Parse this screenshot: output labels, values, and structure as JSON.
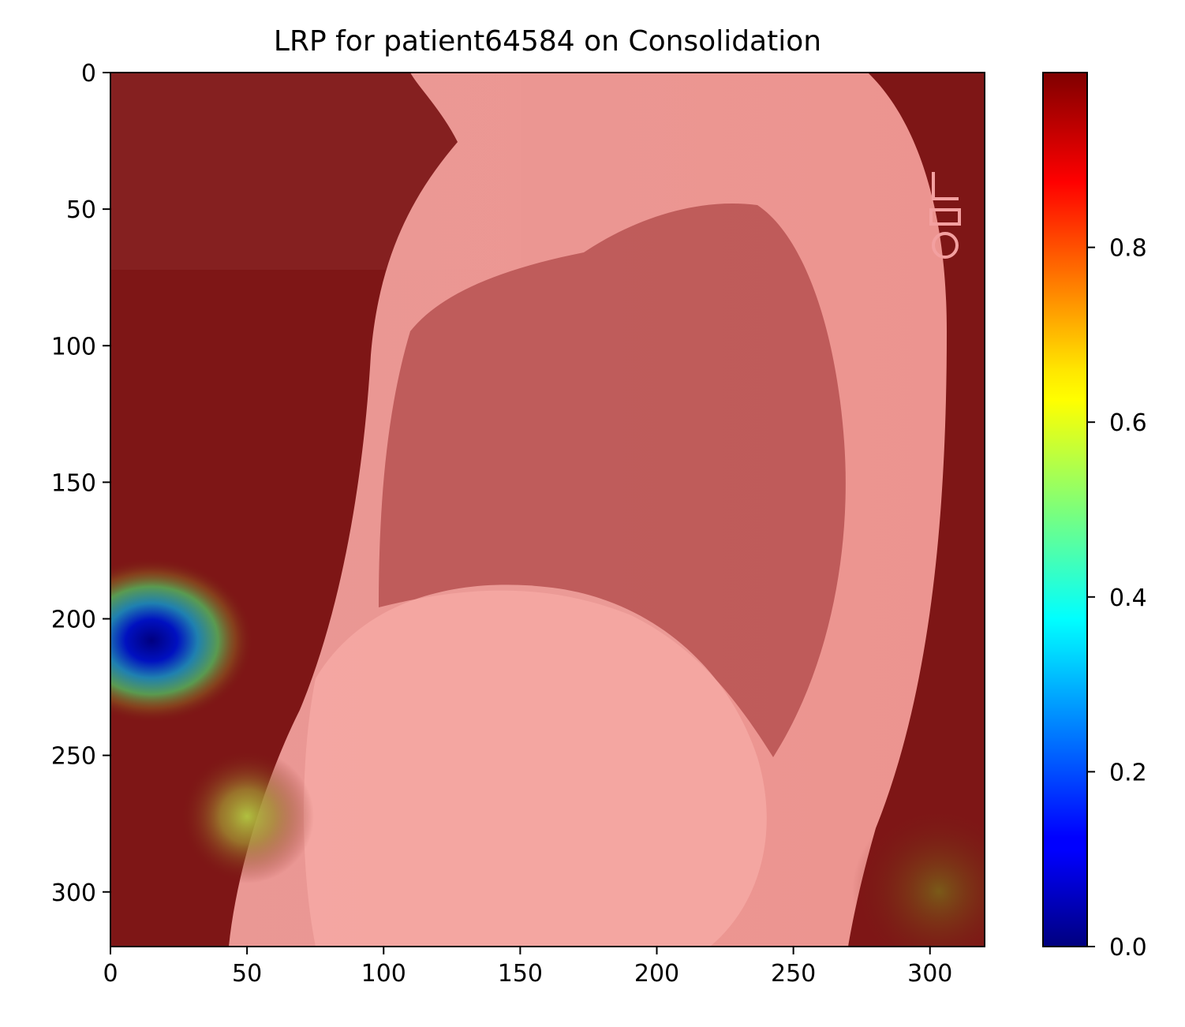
{
  "chart_data": {
    "type": "heatmap",
    "title": "LRP for patient64584 on Consolidation",
    "xlabel": "",
    "ylabel": "",
    "image_size": [
      320,
      320
    ],
    "xlim": [
      0,
      320
    ],
    "ylim": [
      320,
      0
    ],
    "x_ticks": [
      0,
      50,
      100,
      150,
      200,
      250,
      300
    ],
    "y_ticks": [
      0,
      50,
      100,
      150,
      200,
      250,
      300
    ],
    "colormap": "jet",
    "colorbar": {
      "range": [
        0.0,
        1.0
      ],
      "ticks": [
        0.0,
        0.2,
        0.4,
        0.6,
        0.8
      ],
      "tick_labels": [
        "0.0",
        "0.2",
        "0.4",
        "0.6",
        "0.8"
      ]
    },
    "background_color": "#7a1414",
    "overlay_color": "#f4a3a0",
    "hotspots": [
      {
        "x": 15,
        "y": 208,
        "value": 0.02
      },
      {
        "x": 50,
        "y": 272,
        "value": 0.62
      }
    ],
    "grid": false
  }
}
